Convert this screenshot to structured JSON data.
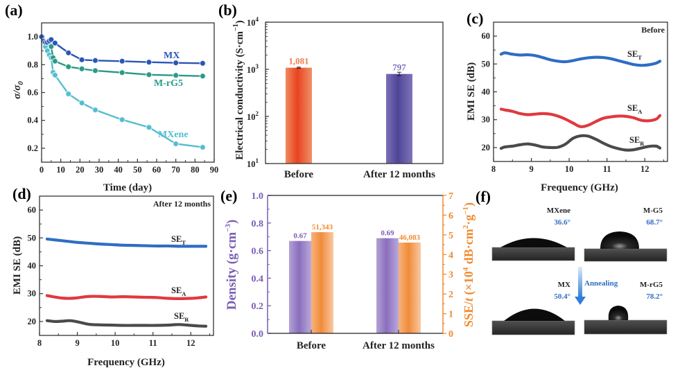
{
  "figure": {
    "panel_labels": [
      "(a)",
      "(b)",
      "(c)",
      "(d)",
      "(e)",
      "(f)"
    ]
  },
  "chart_data": [
    {
      "id": "a",
      "type": "line",
      "xlabel": "Time (day)",
      "ylabel": "σ/σ₀",
      "ylabel_main": "σ/σ",
      "ylabel_sub": "0",
      "xlim": [
        0,
        90
      ],
      "ylim": [
        0.1,
        1.1
      ],
      "xticks": [
        0,
        10,
        20,
        30,
        40,
        50,
        60,
        70,
        80,
        90
      ],
      "yticks": [
        0.2,
        0.4,
        0.6,
        0.8,
        1.0
      ],
      "ytick_labels": [
        "0.2",
        "0.4",
        "0.6",
        "0.8",
        "1.0"
      ],
      "grid": false,
      "series": [
        {
          "name": "MX",
          "color": "#2a55b5",
          "x": [
            0,
            1,
            2,
            3,
            4,
            5,
            7,
            14,
            21,
            28,
            42,
            56,
            70,
            84
          ],
          "y": [
            1.0,
            0.97,
            0.96,
            0.96,
            0.97,
            0.98,
            0.955,
            0.885,
            0.835,
            0.83,
            0.825,
            0.818,
            0.813,
            0.81
          ]
        },
        {
          "name": "M-rG5",
          "color": "#2a9a86",
          "x": [
            0,
            1,
            2,
            3,
            4,
            5,
            6,
            7,
            14,
            21,
            28,
            42,
            56,
            70,
            84
          ],
          "y": [
            1.0,
            0.965,
            0.96,
            0.96,
            0.955,
            0.93,
            0.85,
            0.825,
            0.785,
            0.77,
            0.757,
            0.743,
            0.728,
            0.723,
            0.718
          ]
        },
        {
          "name": "MXene",
          "color": "#55bdd0",
          "x": [
            0,
            1,
            2,
            3,
            4,
            5,
            6,
            7,
            14,
            21,
            28,
            42,
            56,
            70,
            84
          ],
          "y": [
            1.0,
            0.96,
            0.93,
            0.9,
            0.87,
            0.85,
            0.745,
            0.725,
            0.59,
            0.525,
            0.475,
            0.405,
            0.35,
            0.232,
            0.207
          ]
        }
      ]
    },
    {
      "id": "b",
      "type": "bar",
      "yscale": "log",
      "ylabel": "Electrical conductivity (S·cm⁻¹)",
      "ylabel_text": "Electrical conductivity (S·cm",
      "ylabel_sup": "−1",
      "categories": [
        "Before",
        "After 12 months"
      ],
      "values": [
        1081,
        797
      ],
      "errors": [
        30,
        70
      ],
      "value_labels": [
        "1,081",
        "797"
      ],
      "colors": [
        "#e8502a",
        "#5a4e9e"
      ],
      "label_colors": [
        "#f07e4e",
        "#7c72b8"
      ],
      "ylim": [
        10,
        10000
      ],
      "yticks": [
        10,
        100,
        1000,
        10000
      ],
      "ytick_exps": [
        "1",
        "2",
        "3",
        "4"
      ]
    },
    {
      "id": "c",
      "type": "line",
      "annotation": "Before",
      "xlabel": "Frequency (GHz)",
      "ylabel": "EMI SE (dB)",
      "xlim": [
        8,
        12.6
      ],
      "ylim": [
        15,
        65
      ],
      "xticks": [
        8,
        9,
        10,
        11,
        12
      ],
      "yticks": [
        20,
        30,
        40,
        50,
        60
      ],
      "series": [
        {
          "name": "SE_T",
          "label_main": "SE",
          "label_sub": "T",
          "color": "#2f6dc4",
          "x": [
            8.2,
            8.3,
            8.5,
            8.7,
            8.9,
            9.1,
            9.3,
            9.5,
            9.7,
            9.9,
            10.1,
            10.3,
            10.5,
            10.7,
            10.9,
            11.1,
            11.3,
            11.5,
            11.7,
            11.9,
            12.1,
            12.3,
            12.4
          ],
          "y": [
            53.5,
            54.0,
            53.5,
            53.2,
            53.3,
            53.0,
            52.3,
            51.5,
            51.0,
            50.8,
            51.2,
            51.8,
            52.2,
            52.4,
            52.3,
            51.9,
            51.2,
            50.5,
            49.8,
            49.5,
            49.7,
            50.3,
            51.0
          ]
        },
        {
          "name": "SE_A",
          "label_main": "SE",
          "label_sub": "A",
          "color": "#e0393e",
          "x": [
            8.2,
            8.3,
            8.5,
            8.7,
            8.9,
            9.1,
            9.3,
            9.5,
            9.7,
            9.9,
            10.1,
            10.3,
            10.5,
            10.7,
            10.9,
            11.1,
            11.3,
            11.5,
            11.7,
            11.9,
            12.1,
            12.3,
            12.4
          ],
          "y": [
            33.8,
            33.5,
            33.0,
            32.2,
            31.8,
            32.0,
            32.2,
            32.0,
            31.3,
            30.2,
            28.8,
            27.5,
            28.0,
            29.3,
            30.5,
            31.0,
            31.3,
            31.2,
            30.7,
            29.8,
            29.6,
            30.2,
            31.5
          ]
        },
        {
          "name": "SE_R",
          "label_main": "SE",
          "label_sub": "R",
          "color": "#4a4a4a",
          "x": [
            8.2,
            8.3,
            8.5,
            8.7,
            8.9,
            9.1,
            9.3,
            9.5,
            9.7,
            9.9,
            10.1,
            10.3,
            10.5,
            10.7,
            10.9,
            11.1,
            11.3,
            11.5,
            11.7,
            11.9,
            12.1,
            12.3,
            12.4
          ],
          "y": [
            19.7,
            20.2,
            20.5,
            21.0,
            21.3,
            20.9,
            20.2,
            20.0,
            20.1,
            21.2,
            23.3,
            24.2,
            24.1,
            23.0,
            21.6,
            20.4,
            19.6,
            19.1,
            19.2,
            19.8,
            20.4,
            20.5,
            19.8
          ]
        }
      ]
    },
    {
      "id": "d",
      "type": "line",
      "annotation": "After 12 months",
      "xlabel": "Frequency (GHz)",
      "ylabel": "EMI SE (dB)",
      "xlim": [
        8,
        12.6
      ],
      "ylim": [
        15,
        65
      ],
      "xticks": [
        8,
        9,
        10,
        11,
        12
      ],
      "yticks": [
        20,
        30,
        40,
        50,
        60
      ],
      "series": [
        {
          "name": "SE_T",
          "label_main": "SE",
          "label_sub": "T",
          "color": "#2f6dc4",
          "x": [
            8.2,
            8.4,
            8.6,
            8.8,
            9.0,
            9.3,
            9.6,
            9.9,
            10.2,
            10.5,
            10.8,
            11.1,
            11.4,
            11.7,
            12.0,
            12.2,
            12.4
          ],
          "y": [
            49.6,
            49.3,
            49.0,
            48.7,
            48.4,
            48.1,
            47.8,
            47.6,
            47.4,
            47.3,
            47.2,
            47.1,
            47.1,
            47.0,
            47.0,
            47.0,
            47.0
          ]
        },
        {
          "name": "SE_A",
          "label_main": "SE",
          "label_sub": "A",
          "color": "#e0393e",
          "x": [
            8.2,
            8.4,
            8.6,
            8.8,
            9.0,
            9.3,
            9.6,
            9.9,
            10.2,
            10.5,
            10.8,
            11.1,
            11.4,
            11.7,
            12.0,
            12.2,
            12.4
          ],
          "y": [
            29.3,
            28.8,
            28.4,
            28.3,
            28.5,
            29.0,
            29.0,
            28.8,
            28.9,
            28.8,
            28.7,
            28.6,
            28.3,
            28.2,
            28.3,
            28.5,
            28.8
          ]
        },
        {
          "name": "SE_R",
          "label_main": "SE",
          "label_sub": "R",
          "color": "#4a4a4a",
          "x": [
            8.2,
            8.4,
            8.6,
            8.8,
            9.0,
            9.3,
            9.6,
            9.9,
            10.2,
            10.5,
            10.8,
            11.1,
            11.4,
            11.7,
            12.0,
            12.2,
            12.4
          ],
          "y": [
            20.3,
            20.0,
            20.1,
            20.3,
            19.9,
            19.0,
            18.8,
            18.7,
            18.6,
            18.6,
            18.6,
            18.6,
            18.7,
            18.9,
            18.6,
            18.4,
            18.3
          ]
        }
      ]
    },
    {
      "id": "e",
      "type": "bar",
      "categories": [
        "Before",
        "After 12 months"
      ],
      "ylabel_left": "Density (g·cm⁻³)",
      "ylabel_left_text": "Density (g·cm",
      "ylabel_left_sup": "−3",
      "ylabel_right": "SSE/t (×10⁴ dB·cm²·g⁻¹)",
      "ylim_left": [
        0,
        1.0
      ],
      "ylim_right": [
        0,
        7
      ],
      "yticks_left": [
        "0.0",
        "0.2",
        "0.4",
        "0.6",
        "0.8",
        "1.0"
      ],
      "yticks_right": [
        "0",
        "1",
        "2",
        "3",
        "4",
        "5",
        "6",
        "7"
      ],
      "left_color": "#7b5db3",
      "right_color": "#f08a30",
      "series": [
        {
          "name": "Density",
          "axis": "left",
          "color": "#9b7fc4",
          "values": [
            0.67,
            0.69
          ],
          "value_labels": [
            "0.67",
            "0.69"
          ]
        },
        {
          "name": "SSE/t",
          "axis": "right",
          "color": "#f5a05a",
          "values": [
            5.1343,
            4.6083
          ],
          "value_labels": [
            "51,343",
            "46,083"
          ]
        }
      ]
    }
  ],
  "panel_f": {
    "samples": [
      {
        "name": "MXene",
        "angle": "36.6°"
      },
      {
        "name": "M-G5",
        "angle": "68.7°"
      },
      {
        "name": "MX",
        "angle": "50.4°"
      },
      {
        "name": "M-rG5",
        "angle": "78.2°"
      }
    ],
    "arrow_label": "Annealing",
    "angle_color": "#2f6dc4"
  }
}
